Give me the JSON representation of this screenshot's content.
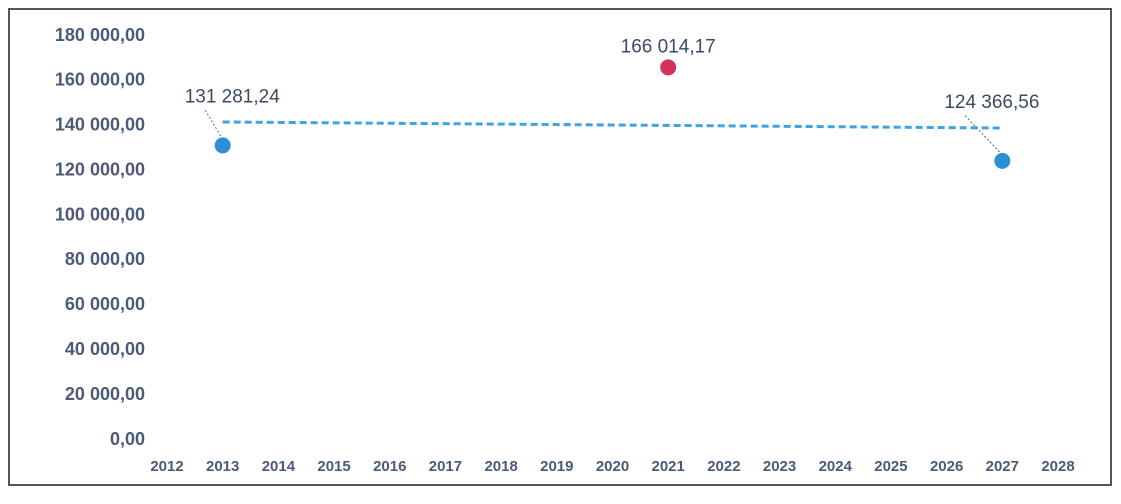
{
  "chart_data": {
    "type": "scatter",
    "x": [
      2013,
      2021,
      2027
    ],
    "values": [
      131281.24,
      166014.17,
      124366.56
    ],
    "value_labels": [
      "131 281,24",
      "166 014,17",
      "124 366,56"
    ],
    "colors": [
      "#2b8fd8",
      "#d4325e",
      "#2b8fd8"
    ],
    "trendline": {
      "x": [
        2013,
        2027
      ],
      "values": [
        141700,
        139000
      ],
      "color": "#3ea3e2"
    },
    "xlim": [
      2012,
      2028
    ],
    "xticks": [
      2012,
      2013,
      2014,
      2015,
      2016,
      2017,
      2018,
      2019,
      2020,
      2021,
      2022,
      2023,
      2024,
      2025,
      2026,
      2027,
      2028
    ],
    "ylim": [
      0,
      180000
    ],
    "yticks": [
      {
        "value": 0,
        "label": "0,00"
      },
      {
        "value": 20000,
        "label": "20 000,00"
      },
      {
        "value": 40000,
        "label": "40 000,00"
      },
      {
        "value": 60000,
        "label": "60 000,00"
      },
      {
        "value": 80000,
        "label": "80 000,00"
      },
      {
        "value": 100000,
        "label": "100 000,00"
      },
      {
        "value": 120000,
        "label": "120 000,00"
      },
      {
        "value": 140000,
        "label": "140 000,00"
      },
      {
        "value": 160000,
        "label": "160 000,00"
      },
      {
        "value": 180000,
        "label": "180 000,00"
      }
    ],
    "grid": false
  }
}
